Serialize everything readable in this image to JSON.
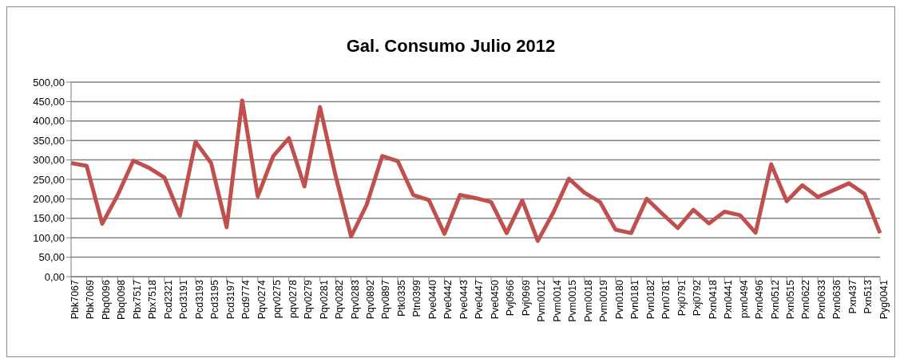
{
  "chart_data": {
    "type": "line",
    "title": "Gal. Consumo Julio 2012",
    "categories": [
      "Pbk7067",
      "Pbk7069",
      "Pbq0096",
      "Pbq0098",
      "Pbx7517",
      "Pbx7518",
      "Pcd2321",
      "Pcd3191",
      "Pcd3193",
      "Pcd3195",
      "Pcd3197",
      "Pcd9774",
      "Pqv0274",
      "pqv0275",
      "pqv0278",
      "Pqv0279",
      "Pqv0281",
      "Pqv0282",
      "Pqv0283",
      "Pqv0892",
      "Pqv0897",
      "Ptk0335",
      "Ptn0399",
      "Pve0440",
      "Pve0442",
      "Pve0443",
      "Pve0447",
      "Pve0450",
      "Pvj0966",
      "Pvj0969",
      "Pvm0012",
      "Pvm0014",
      "Pvm0015",
      "Pvm0018",
      "Pvm0019",
      "Pvn0180",
      "Pvn0181",
      "Pvn0182",
      "Pvn0781",
      "Pxj0791",
      "Pxj0792",
      "Pxn0418",
      "Pxn0441",
      "pxn0494",
      "Pxn0496",
      "Pxn0512",
      "Pxn0515",
      "Pxn0622",
      "Pxn0633",
      "Pxn0636",
      "Pxn437",
      "Pxn513",
      "Pyg0041"
    ],
    "series": [
      {
        "color": "#c0504d",
        "values": [
          292,
          285,
          136,
          210,
          298,
          280,
          255,
          157,
          347,
          292,
          127,
          453,
          206,
          310,
          356,
          232,
          436,
          260,
          103,
          185,
          310,
          297,
          210,
          197,
          110,
          210,
          202,
          192,
          112,
          196,
          92,
          165,
          252,
          216,
          192,
          121,
          112,
          200,
          162,
          125,
          172,
          137,
          167,
          158,
          113,
          289,
          194,
          235,
          205,
          222,
          240,
          213,
          112
        ]
      }
    ],
    "ylim": [
      0,
      500
    ],
    "yticks": [
      {
        "value": 0,
        "label": "0,00"
      },
      {
        "value": 50,
        "label": "50,00"
      },
      {
        "value": 100,
        "label": "100,00"
      },
      {
        "value": 150,
        "label": "150,00"
      },
      {
        "value": 200,
        "label": "200,00"
      },
      {
        "value": 250,
        "label": "250,00"
      },
      {
        "value": 300,
        "label": "300,00"
      },
      {
        "value": 350,
        "label": "350,00"
      },
      {
        "value": 400,
        "label": "400,00"
      },
      {
        "value": 450,
        "label": "450,00"
      },
      {
        "value": 500,
        "label": "500,00"
      }
    ],
    "grid": "y",
    "legend": false,
    "marker": "none",
    "line_style": "solid"
  }
}
